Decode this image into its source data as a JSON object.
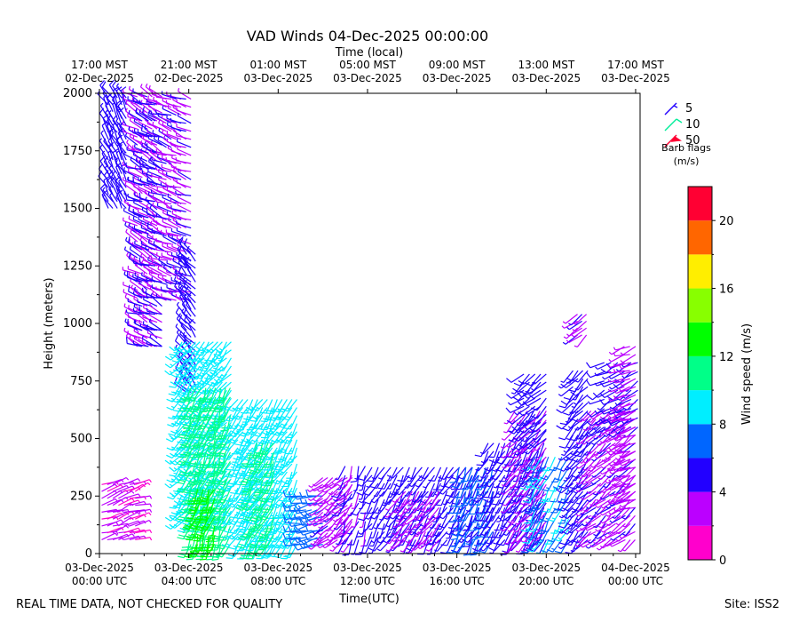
{
  "chart_data": {
    "type": "wind-barb-time-height",
    "title": "VAD Winds 04-Dec-2025 00:00:00",
    "top_axis_title": "Time (local)",
    "xlabel": "Time(UTC)",
    "ylabel": "Height (meters)",
    "x_range_hours_utc": [
      0,
      24.2
    ],
    "ylim": [
      0,
      2000
    ],
    "y_ticks": [
      0,
      250,
      500,
      750,
      1000,
      1250,
      1500,
      1750,
      2000
    ],
    "x_ticks_utc": [
      {
        "hour": 0,
        "line1": "03-Dec-2025",
        "line2": "00:00 UTC"
      },
      {
        "hour": 4,
        "line1": "03-Dec-2025",
        "line2": "04:00 UTC"
      },
      {
        "hour": 8,
        "line1": "03-Dec-2025",
        "line2": "08:00 UTC"
      },
      {
        "hour": 12,
        "line1": "03-Dec-2025",
        "line2": "12:00 UTC"
      },
      {
        "hour": 16,
        "line1": "03-Dec-2025",
        "line2": "16:00 UTC"
      },
      {
        "hour": 20,
        "line1": "03-Dec-2025",
        "line2": "20:00 UTC"
      },
      {
        "hour": 24,
        "line1": "04-Dec-2025",
        "line2": "00:00 UTC"
      }
    ],
    "x_ticks_local": [
      {
        "hour": 0,
        "line1": "17:00 MST",
        "line2": "02-Dec-2025"
      },
      {
        "hour": 4,
        "line1": "21:00 MST",
        "line2": "02-Dec-2025"
      },
      {
        "hour": 8,
        "line1": "01:00 MST",
        "line2": "03-Dec-2025"
      },
      {
        "hour": 12,
        "line1": "05:00 MST",
        "line2": "03-Dec-2025"
      },
      {
        "hour": 16,
        "line1": "09:00 MST",
        "line2": "03-Dec-2025"
      },
      {
        "hour": 20,
        "line1": "13:00 MST",
        "line2": "03-Dec-2025"
      },
      {
        "hour": 24,
        "line1": "17:00 MST",
        "line2": "03-Dec-2025"
      }
    ],
    "barb_legend": {
      "entries": [
        "5",
        "10",
        "50"
      ],
      "label_line1": "Barb flags",
      "label_line2": "(m/s)"
    },
    "colorbar": {
      "label": "Wind speed (m/s)",
      "range": [
        0,
        22
      ],
      "ticks": [
        0,
        4,
        8,
        12,
        16,
        20
      ],
      "bins": [
        {
          "from": 0,
          "to": 2,
          "color": "#ff00cc"
        },
        {
          "from": 2,
          "to": 4,
          "color": "#bb00ff"
        },
        {
          "from": 4,
          "to": 6,
          "color": "#2200ff"
        },
        {
          "from": 6,
          "to": 8,
          "color": "#0066ff"
        },
        {
          "from": 8,
          "to": 10,
          "color": "#00eeff"
        },
        {
          "from": 10,
          "to": 12,
          "color": "#00ff88"
        },
        {
          "from": 12,
          "to": 14,
          "color": "#00ff00"
        },
        {
          "from": 14,
          "to": 16,
          "color": "#88ff00"
        },
        {
          "from": 16,
          "to": 18,
          "color": "#ffee00"
        },
        {
          "from": 18,
          "to": 20,
          "color": "#ff6600"
        },
        {
          "from": 20,
          "to": 22,
          "color": "#ff0033"
        }
      ]
    },
    "barb_groups": [
      {
        "t": [
          0.1,
          1.6
        ],
        "h": [
          60,
          320
        ],
        "speed": 2.2,
        "dir": 70,
        "step_t": 0.25,
        "step_h": 30
      },
      {
        "t": [
          0.4,
          1.2
        ],
        "h": [
          1500,
          2000
        ],
        "speed": 5.0,
        "dir": 330,
        "step_t": 0.2,
        "step_h": 30
      },
      {
        "t": [
          1.7,
          2.8
        ],
        "h": [
          900,
          2000
        ],
        "speed": 3.6,
        "dir": 300,
        "step_t": 0.22,
        "step_h": 35
      },
      {
        "t": [
          1.9,
          2.8
        ],
        "h": [
          900,
          2000
        ],
        "speed": 4.8,
        "dir": 290,
        "step_t": 0.3,
        "step_h": 70
      },
      {
        "t": [
          3.0,
          4.1
        ],
        "h": [
          1100,
          2000
        ],
        "speed": 3.8,
        "dir": 290,
        "step_t": 0.22,
        "step_h": 35
      },
      {
        "t": [
          3.9,
          4.4
        ],
        "h": [
          700,
          1300
        ],
        "speed": 5.0,
        "dir": 320,
        "step_t": 0.2,
        "step_h": 30
      },
      {
        "t": [
          3.7,
          5.9
        ],
        "h": [
          150,
          950
        ],
        "speed": 9.0,
        "dir": 220,
        "step_t": 0.2,
        "step_h": 35
      },
      {
        "t": [
          4.1,
          5.9
        ],
        "h": [
          40,
          750
        ],
        "speed": 11.0,
        "dir": 200,
        "step_t": 0.22,
        "step_h": 40
      },
      {
        "t": [
          4.4,
          5.2
        ],
        "h": [
          40,
          300
        ],
        "speed": 13.0,
        "dir": 200,
        "step_t": 0.25,
        "step_h": 40
      },
      {
        "t": [
          6.2,
          9.0
        ],
        "h": [
          40,
          700
        ],
        "speed": 9.0,
        "dir": 210,
        "step_t": 0.22,
        "step_h": 35
      },
      {
        "t": [
          6.8,
          8.0
        ],
        "h": [
          40,
          500
        ],
        "speed": 10.5,
        "dir": 205,
        "step_t": 0.25,
        "step_h": 40
      },
      {
        "t": [
          9.0,
          10.1
        ],
        "h": [
          40,
          250
        ],
        "speed": 7.0,
        "dir": 260,
        "step_t": 0.25,
        "step_h": 30
      },
      {
        "t": [
          10.0,
          11.5
        ],
        "h": [
          60,
          330
        ],
        "speed": 3.4,
        "dir": 230,
        "step_t": 0.22,
        "step_h": 30
      },
      {
        "t": [
          11.0,
          12.0
        ],
        "h": [
          60,
          400
        ],
        "speed": 4.6,
        "dir": 200,
        "step_t": 0.3,
        "step_h": 40
      },
      {
        "t": [
          12.2,
          17.0
        ],
        "h": [
          60,
          380
        ],
        "speed": 4.8,
        "dir": 210,
        "step_t": 0.28,
        "step_h": 35
      },
      {
        "t": [
          13.4,
          15.2
        ],
        "h": [
          60,
          300
        ],
        "speed": 3.3,
        "dir": 220,
        "step_t": 0.3,
        "step_h": 35
      },
      {
        "t": [
          16.1,
          17.6
        ],
        "h": [
          60,
          380
        ],
        "speed": 6.6,
        "dir": 200,
        "step_t": 0.3,
        "step_h": 35
      },
      {
        "t": [
          17.4,
          20.0
        ],
        "h": [
          60,
          500
        ],
        "speed": 5.0,
        "dir": 210,
        "step_t": 0.25,
        "step_h": 35
      },
      {
        "t": [
          18.6,
          20.0
        ],
        "h": [
          60,
          650
        ],
        "speed": 3.5,
        "dir": 220,
        "step_t": 0.28,
        "step_h": 40
      },
      {
        "t": [
          19.0,
          20.0
        ],
        "h": [
          500,
          800
        ],
        "speed": 5.2,
        "dir": 230,
        "step_t": 0.25,
        "step_h": 35
      },
      {
        "t": [
          19.5,
          21.2
        ],
        "h": [
          60,
          450
        ],
        "speed": 8.0,
        "dir": 210,
        "step_t": 0.3,
        "step_h": 45
      },
      {
        "t": [
          21.2,
          22.0
        ],
        "h": [
          60,
          800
        ],
        "speed": 5.0,
        "dir": 220,
        "step_t": 0.22,
        "step_h": 35
      },
      {
        "t": [
          21.4,
          21.9
        ],
        "h": [
          950,
          1050
        ],
        "speed": 3.5,
        "dir": 230,
        "step_t": 0.2,
        "step_h": 30
      },
      {
        "t": [
          22.0,
          24.1
        ],
        "h": [
          60,
          650
        ],
        "speed": 3.6,
        "dir": 230,
        "step_t": 0.22,
        "step_h": 35
      },
      {
        "t": [
          22.6,
          24.1
        ],
        "h": [
          550,
          850
        ],
        "speed": 5.0,
        "dir": 240,
        "step_t": 0.3,
        "step_h": 40
      },
      {
        "t": [
          23.5,
          24.1
        ],
        "h": [
          200,
          920
        ],
        "speed": 2.8,
        "dir": 250,
        "step_t": 0.25,
        "step_h": 35
      }
    ]
  },
  "footer": {
    "left": "REAL TIME DATA, NOT CHECKED FOR QUALITY",
    "right": "Site: ISS2"
  }
}
